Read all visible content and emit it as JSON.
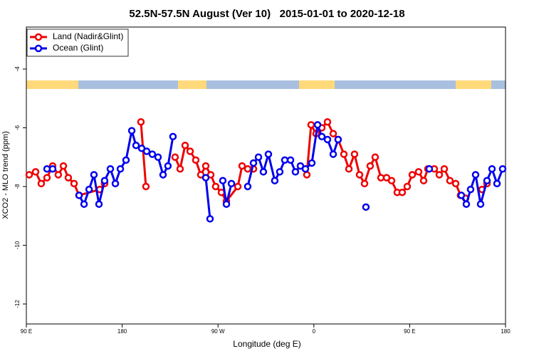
{
  "chart_data": {
    "type": "line",
    "title": "52.5N-57.5N August (Ver 10)   2015-01-01 to 2020-12-18",
    "x_label": "Longitude (deg E)",
    "y_label": "XCO2 - MLO trend (ppm)",
    "xlim": [
      90,
      540
    ],
    "xticks": [
      {
        "value": 90,
        "label": "90 E"
      },
      {
        "value": 180,
        "label": "180"
      },
      {
        "value": 270,
        "label": "90 W"
      },
      {
        "value": 360,
        "label": "0"
      },
      {
        "value": 450,
        "label": "90 E"
      },
      {
        "value": 540,
        "label": "180"
      }
    ],
    "ylim": [
      -12.68,
      -2.57
    ],
    "yticks": [
      -12,
      -10,
      -8,
      -6,
      -4
    ],
    "legend": "top-left",
    "series": [
      {
        "name": "Land (Nadir&Glint)",
        "color": "#ee0000",
        "x": [
          92.7,
          98.7,
          104,
          109.4,
          114.7,
          120,
          124.8,
          129.4,
          134.8,
          139.5,
          158.9,
          163.5,
          null,
          197.6,
          202.3,
          null,
          229.7,
          234.4,
          239.1,
          243.8,
          249.1,
          253.8,
          258.5,
          263.2,
          267.8,
          273.2,
          277.9,
          288.6,
          292.6,
          297.9,
          303.3,
          null,
          353.4,
          357.4,
          362.1,
          367.5,
          372.8,
          378.2,
          382.8,
          388.2,
          392.9,
          398.2,
          402.9,
          407.6,
          412.9,
          417.6,
          423,
          428.3,
          433,
          438.3,
          443,
          447.7,
          452.4,
          458.4,
          463.1,
          467.1,
          473.1,
          477.8,
          482.5,
          487.8,
          493.2,
          497.8,
          502.5,
          null,
          517.9,
          522.6
        ],
        "values": [
          -7.6,
          -7.5,
          -7.9,
          -7.7,
          -7.3,
          -7.6,
          -7.3,
          -7.7,
          -7.9,
          -8.3,
          -8.1,
          -7.9,
          null,
          -5.8,
          -8.0,
          null,
          -7.0,
          -7.4,
          -6.6,
          -6.8,
          -7.1,
          -7.6,
          -7.3,
          -7.6,
          -8.0,
          -8.2,
          -8.5,
          -8.0,
          -7.3,
          -7.4,
          -7.4,
          null,
          -7.6,
          -5.9,
          -6.2,
          -6.0,
          -5.8,
          -6.2,
          -6.4,
          -6.9,
          -7.4,
          -6.9,
          -7.6,
          -7.9,
          -7.3,
          -7.0,
          -7.7,
          -7.7,
          -7.8,
          -8.2,
          -8.2,
          -8.0,
          -7.6,
          -7.5,
          -7.8,
          -7.4,
          -7.4,
          -7.6,
          -7.4,
          -7.8,
          -7.9,
          -8.3,
          -8.4,
          null,
          -8.1,
          -7.9
        ]
      },
      {
        "name": "Ocean (Glint)",
        "color": "#0000ee",
        "x": [
          109.4,
          114.7,
          null,
          139.5,
          144.2,
          148.9,
          153.5,
          158.2,
          163.5,
          168.9,
          173.6,
          178.3,
          183.6,
          189,
          193,
          198.3,
          203,
          208.3,
          213.7,
          218.4,
          223,
          227.7,
          null,
          258.5,
          262.5,
          null,
          274.5,
          277.9,
          282.6,
          null,
          297.9,
          303.3,
          308,
          312.6,
          317.3,
          323.3,
          328,
          332.7,
          338.1,
          342.7,
          347.4,
          352.1,
          358.1,
          363.5,
          367.5,
          372.8,
          378.2,
          382.8,
          null,
          408.9,
          null,
          468.4,
          null,
          498.5,
          503.2,
          507.2,
          511.9,
          516.6,
          522.6,
          527.3,
          532,
          537.3
        ],
        "values": [
          -7.4,
          -7.4,
          null,
          -8.3,
          -8.6,
          -8.1,
          -7.6,
          -8.6,
          -7.8,
          -7.4,
          -7.9,
          -7.4,
          -7.1,
          -6.1,
          -6.6,
          -6.7,
          -6.8,
          -6.9,
          -7.0,
          -7.6,
          -7.3,
          -6.3,
          null,
          -7.7,
          -9.1,
          null,
          -7.8,
          -8.6,
          -7.9,
          null,
          -8.0,
          -7.2,
          -7.0,
          -7.5,
          -6.9,
          -7.8,
          -7.5,
          -7.1,
          -7.1,
          -7.5,
          -7.3,
          -7.4,
          -7.2,
          -5.9,
          -6.3,
          -6.4,
          -6.9,
          -6.4,
          null,
          -8.7,
          null,
          -7.4,
          null,
          -8.3,
          -8.6,
          -8.1,
          -7.6,
          -8.6,
          -7.8,
          -7.4,
          -7.9,
          -7.4
        ]
      }
    ]
  }
}
